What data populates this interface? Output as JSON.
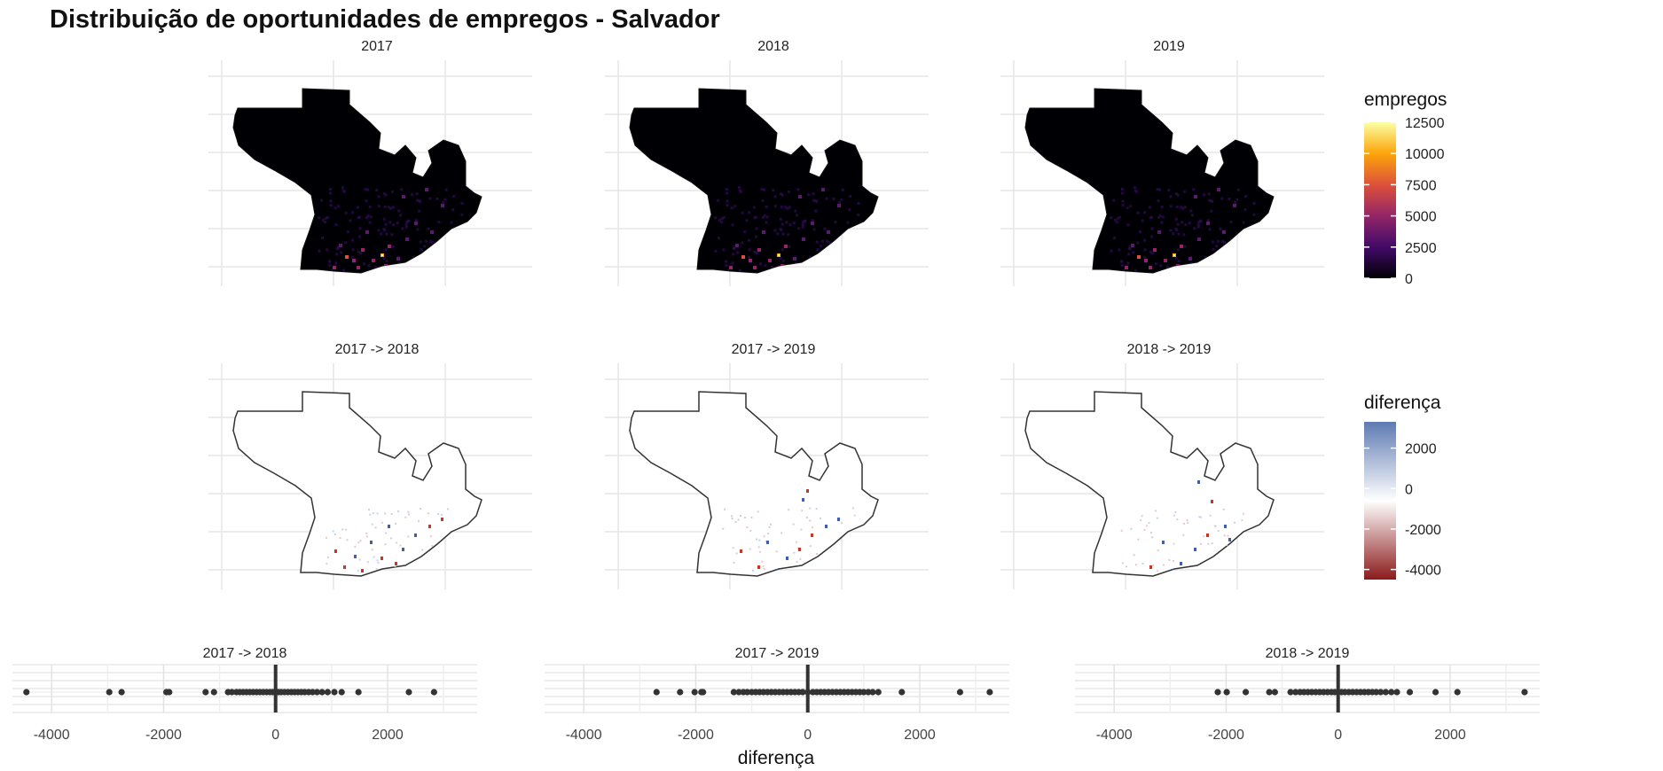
{
  "title": "Distribuição de oportunidades de empregos - Salvador",
  "chart_data": [
    {
      "type": "heatmap",
      "panels": [
        "2017",
        "2018",
        "2019"
      ],
      "legend": {
        "title": "empregos",
        "placement": "right",
        "colors": [
          "#000004",
          "#420a68",
          "#932667",
          "#dd513a",
          "#fca50a",
          "#fcffa4"
        ],
        "range": [
          0,
          12500
        ],
        "ticks": [
          "12500",
          "10000",
          "7500",
          "5000",
          "2500",
          "0"
        ]
      },
      "grid": true
    },
    {
      "type": "heatmap",
      "panels": [
        "2017 -> 2018",
        "2017 -> 2019",
        "2018 -> 2019"
      ],
      "legend": {
        "title": "diferença",
        "placement": "right",
        "colors": [
          "#8b1a1a",
          "#ffffff",
          "#5d7ab2"
        ],
        "range": [
          -4500,
          3300
        ],
        "ticks": [
          "2000",
          "0",
          "-2000",
          "-4000"
        ]
      },
      "grid": true
    },
    {
      "type": "scatter",
      "xlabel": "diferença",
      "xlim": [
        -4700,
        3600
      ],
      "x_ticks": [
        "-4000",
        "-2000",
        "0",
        "2000"
      ],
      "grid": true,
      "series": [
        {
          "label": "2017 -> 2018",
          "values": [
            -4450,
            -2970,
            -2750,
            -1950,
            -1900,
            -1250,
            -1100,
            -850,
            -780,
            -700,
            -640,
            -580,
            -520,
            -460,
            -400,
            -340,
            -280,
            -220,
            -160,
            -100,
            -50,
            0,
            50,
            100,
            160,
            220,
            280,
            340,
            400,
            460,
            520,
            590,
            660,
            740,
            830,
            930,
            1050,
            1180,
            1480,
            2380,
            2830
          ]
        },
        {
          "label": "2017 -> 2019",
          "values": [
            -2700,
            -2280,
            -2020,
            -1900,
            -1870,
            -1320,
            -1230,
            -1150,
            -1080,
            -1000,
            -930,
            -860,
            -790,
            -720,
            -650,
            -580,
            -510,
            -440,
            -370,
            -300,
            -230,
            -160,
            -90,
            0,
            90,
            160,
            230,
            300,
            370,
            440,
            510,
            580,
            650,
            720,
            790,
            860,
            930,
            1000,
            1080,
            1160,
            1260,
            1680,
            2720,
            3250
          ]
        },
        {
          "label": "2018 -> 2019",
          "values": [
            -2150,
            -1990,
            -1650,
            -1230,
            -1130,
            -850,
            -760,
            -680,
            -610,
            -540,
            -470,
            -400,
            -330,
            -260,
            -190,
            -120,
            -60,
            0,
            60,
            120,
            190,
            260,
            330,
            400,
            470,
            540,
            610,
            680,
            760,
            850,
            950,
            1050,
            1280,
            1740,
            2130,
            3330
          ]
        }
      ]
    }
  ]
}
